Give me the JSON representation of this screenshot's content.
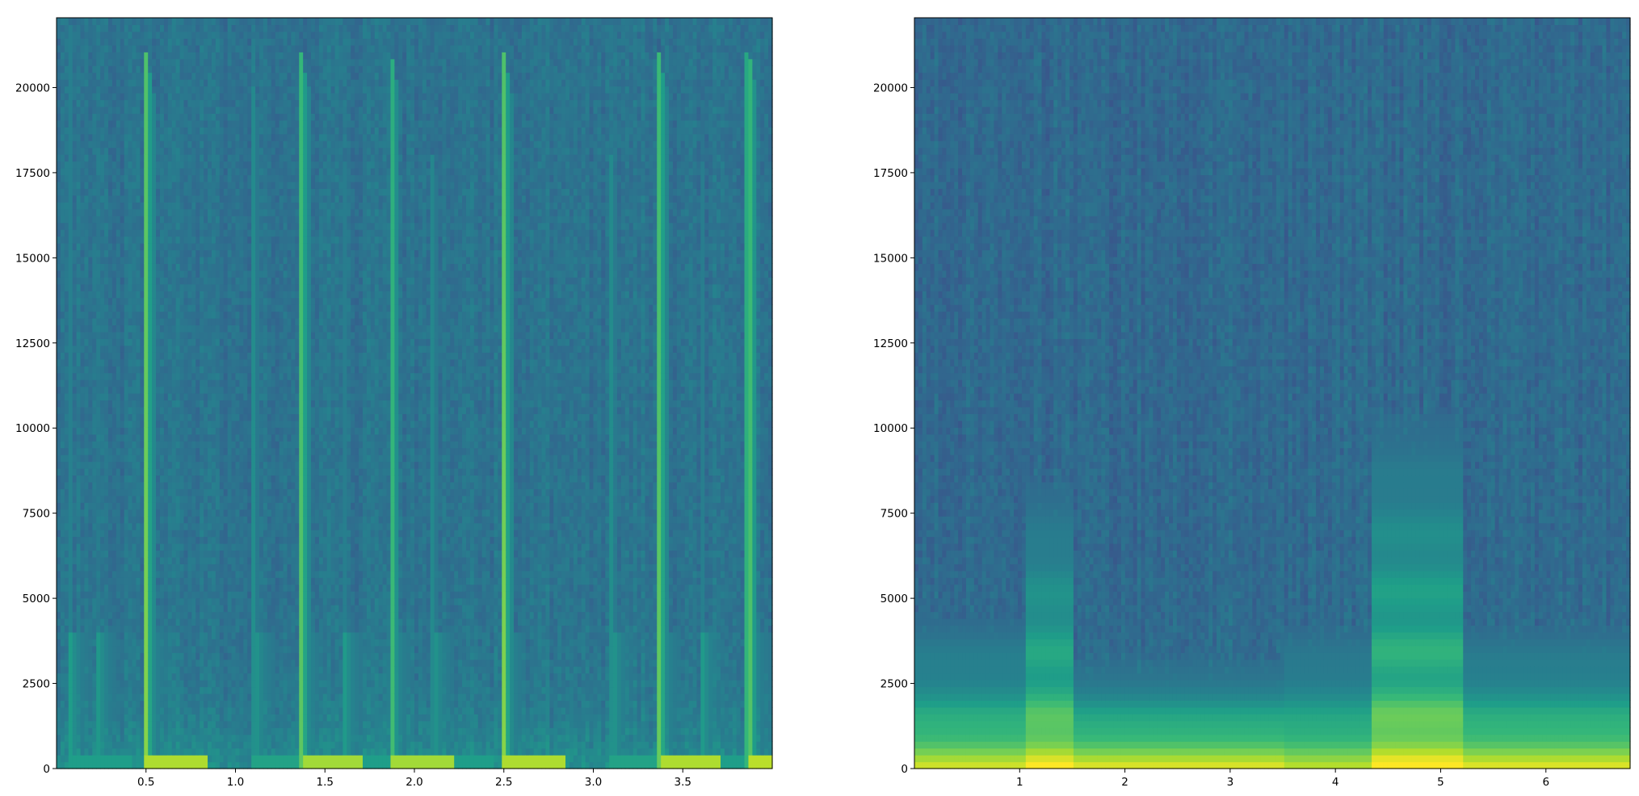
{
  "chart_data": [
    {
      "type": "heatmap",
      "title": "",
      "xlabel": "",
      "ylabel": "",
      "colormap": "viridis",
      "xlim": [
        0,
        4.0
      ],
      "ylim": [
        0,
        22050
      ],
      "xticks": [
        0.5,
        1.0,
        1.5,
        2.0,
        2.5,
        3.0,
        3.5
      ],
      "xtick_labels": [
        "0.5",
        "1.0",
        "1.5",
        "2.0",
        "2.5",
        "3.0",
        "3.5"
      ],
      "yticks": [
        0,
        2500,
        5000,
        7500,
        10000,
        12500,
        15000,
        17500,
        20000
      ],
      "ytick_labels": [
        "0",
        "2500",
        "5000",
        "7500",
        "10000",
        "12500",
        "15000",
        "17500",
        "20000"
      ],
      "background_level": 0.38,
      "onsets": [
        {
          "t": 0.07,
          "width": 0.03,
          "strength": 0.48,
          "decay_to_hz": 22000
        },
        {
          "t": 0.22,
          "width": 0.025,
          "strength": 0.42,
          "decay_to_hz": 18000
        },
        {
          "t": 0.5,
          "width": 0.05,
          "strength": 0.82,
          "decay_to_hz": 21000
        },
        {
          "t": 1.1,
          "width": 0.03,
          "strength": 0.5,
          "decay_to_hz": 20000
        },
        {
          "t": 1.37,
          "width": 0.045,
          "strength": 0.8,
          "decay_to_hz": 21000
        },
        {
          "t": 1.6,
          "width": 0.03,
          "strength": 0.48,
          "decay_to_hz": 18000
        },
        {
          "t": 1.87,
          "width": 0.045,
          "strength": 0.8,
          "decay_to_hz": 21000
        },
        {
          "t": 2.1,
          "width": 0.03,
          "strength": 0.48,
          "decay_to_hz": 18000
        },
        {
          "t": 2.5,
          "width": 0.05,
          "strength": 0.82,
          "decay_to_hz": 21000
        },
        {
          "t": 3.1,
          "width": 0.03,
          "strength": 0.5,
          "decay_to_hz": 18000
        },
        {
          "t": 3.37,
          "width": 0.045,
          "strength": 0.82,
          "decay_to_hz": 21000
        },
        {
          "t": 3.6,
          "width": 0.03,
          "strength": 0.48,
          "decay_to_hz": 18000
        },
        {
          "t": 3.87,
          "width": 0.05,
          "strength": 0.84,
          "decay_to_hz": 21000
        }
      ]
    },
    {
      "type": "heatmap",
      "title": "",
      "xlabel": "",
      "ylabel": "",
      "colormap": "viridis",
      "xlim": [
        0,
        6.8
      ],
      "ylim": [
        0,
        22050
      ],
      "xticks": [
        1,
        2,
        3,
        4,
        5,
        6
      ],
      "xtick_labels": [
        "1",
        "2",
        "3",
        "4",
        "5",
        "6"
      ],
      "yticks": [
        0,
        2500,
        5000,
        7500,
        10000,
        12500,
        15000,
        17500,
        20000
      ],
      "ytick_labels": [
        "0",
        "2500",
        "5000",
        "7500",
        "10000",
        "12500",
        "15000",
        "17500",
        "20000"
      ],
      "background_level": 0.34,
      "energy_regions": [
        {
          "t_start": 0.0,
          "t_end": 1.05,
          "max_hz": 4500,
          "strength": 0.7
        },
        {
          "t_start": 1.05,
          "t_end": 1.5,
          "max_hz": 8500,
          "strength": 0.78
        },
        {
          "t_start": 1.5,
          "t_end": 3.5,
          "max_hz": 3300,
          "strength": 0.72
        },
        {
          "t_start": 3.5,
          "t_end": 4.35,
          "max_hz": 4200,
          "strength": 0.66
        },
        {
          "t_start": 4.35,
          "t_end": 5.2,
          "max_hz": 10500,
          "strength": 0.8
        },
        {
          "t_start": 5.2,
          "t_end": 6.8,
          "max_hz": 4200,
          "strength": 0.72
        }
      ]
    }
  ]
}
